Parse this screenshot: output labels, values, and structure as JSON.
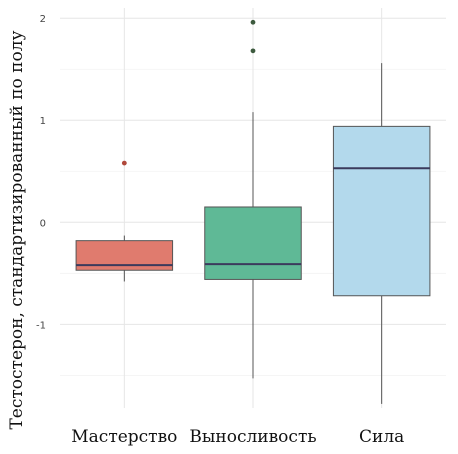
{
  "chart_data": {
    "type": "box",
    "ylabel": "Тестостерон, стандартизированный по полу",
    "xlabel": "",
    "categories": [
      "Мастерство",
      "Выносливость",
      "Сила"
    ],
    "yticks": [
      -1,
      0,
      1,
      2
    ],
    "ylim": [
      -1.82,
      2.1
    ],
    "grid": true,
    "legend": "none",
    "boxes": [
      {
        "name": "Мастерство",
        "color": "#e07b6e",
        "whisker_low": -0.58,
        "q1": -0.47,
        "median": -0.42,
        "q3": -0.18,
        "whisker_high": -0.13,
        "outliers": [
          0.58
        ]
      },
      {
        "name": "Выносливость",
        "color": "#5fb996",
        "whisker_low": -1.53,
        "q1": -0.56,
        "median": -0.41,
        "q3": 0.15,
        "whisker_high": 1.08,
        "outliers": [
          1.68,
          1.96
        ]
      },
      {
        "name": "Сила",
        "color": "#b3d9ec",
        "whisker_low": -1.78,
        "q1": -0.72,
        "median": 0.53,
        "q3": 0.94,
        "whisker_high": 1.56,
        "outliers": []
      }
    ]
  }
}
